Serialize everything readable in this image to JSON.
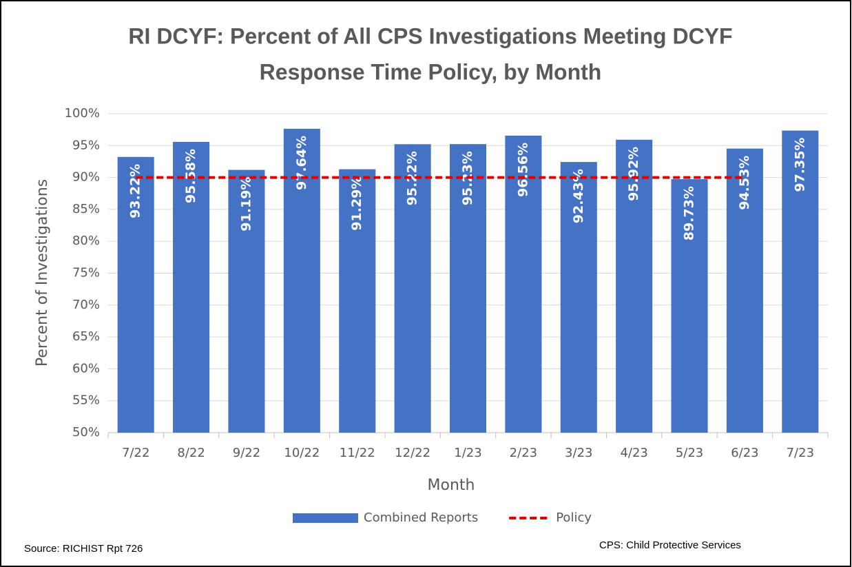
{
  "chart_data": {
    "type": "bar",
    "title": [
      "RI DCYF: Percent of All CPS Investigations Meeting DCYF",
      "Response Time Policy, by Month"
    ],
    "x_label": "Month",
    "y_label": "Percent of Investigations",
    "categories": [
      "7/22",
      "8/22",
      "9/22",
      "10/22",
      "11/22",
      "12/22",
      "1/23",
      "2/23",
      "3/23",
      "4/23",
      "5/23",
      "6/23",
      "7/23"
    ],
    "series": [
      {
        "name": "Combined Reports",
        "type": "bar",
        "color": "#4472c4",
        "values": [
          93.22,
          95.58,
          91.19,
          97.64,
          91.29,
          95.22,
          95.23,
          96.56,
          92.43,
          95.92,
          89.73,
          94.53,
          97.35
        ],
        "value_labels": [
          "93.22%",
          "95.58%",
          "91.19%",
          "97.64%",
          "91.29%",
          "95.22%",
          "95.23%",
          "96.56%",
          "92.43%",
          "95.92%",
          "89.73%",
          "94.53%",
          "97.35%"
        ]
      },
      {
        "name": "Policy",
        "type": "line",
        "dashed": true,
        "color": "#e00000",
        "values": [
          90,
          90,
          90,
          90,
          90,
          90,
          90,
          90,
          90,
          90,
          90,
          90,
          null
        ]
      }
    ],
    "ylim": [
      50,
      100
    ],
    "yticks": [
      {
        "value": 50,
        "label": "50%"
      },
      {
        "value": 55,
        "label": "55%"
      },
      {
        "value": 60,
        "label": "60%"
      },
      {
        "value": 65,
        "label": "65%"
      },
      {
        "value": 70,
        "label": "70%"
      },
      {
        "value": 75,
        "label": "75%"
      },
      {
        "value": 80,
        "label": "80%"
      },
      {
        "value": 85,
        "label": "85%"
      },
      {
        "value": 90,
        "label": "90%"
      },
      {
        "value": 95,
        "label": "95%"
      },
      {
        "value": 100,
        "label": "100%"
      }
    ],
    "grid": true,
    "legend": "bottom",
    "annotations": [
      "Source: RICHIST Rpt 726",
      "CPS: Child Protective Services"
    ]
  }
}
